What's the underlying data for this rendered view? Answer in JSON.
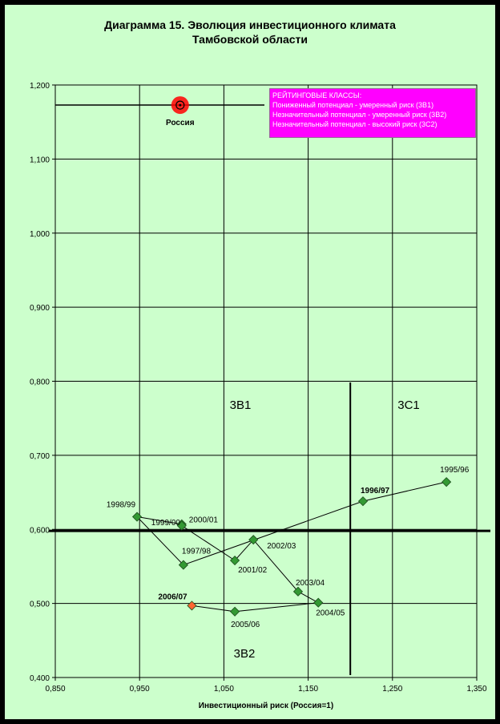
{
  "title_line1": "Диаграмма 15. Эволюция инвестиционного климата",
  "title_line2": "Тамбовской области",
  "legend": {
    "header": "РЕЙТИНГОВЫЕ КЛАССЫ:",
    "items": [
      "Пониженный потенциал - умеренный риск (3В1)",
      "Незначительный потенциал - умеренный риск (3В2)",
      "Незначительный потенциал - высокий риск (3С2)"
    ]
  },
  "zones": {
    "zb1": "3В1",
    "zc1": "3С1",
    "zb2": "3В2"
  },
  "colors": {
    "background": "#ccffcc",
    "frame": "#000000",
    "point": "#339933",
    "highlight": "#ff6633",
    "russia": "#ff0000",
    "legend_bg": "#ff00ff"
  },
  "chart_data": {
    "type": "scatter",
    "xlabel": "Инвестиционный риск (Россия=1)",
    "ylabel": "",
    "xlim": [
      0.85,
      1.35
    ],
    "ylim": [
      0.4,
      1.2
    ],
    "x_ticks": [
      "0,850",
      "0,950",
      "1,050",
      "1,150",
      "1,250",
      "1,350"
    ],
    "y_ticks": [
      "0,400",
      "0,500",
      "0,600",
      "0,700",
      "0,800",
      "0,900",
      "1,000",
      "1,100",
      "1,200"
    ],
    "grid": true,
    "reference": {
      "label": "Россия",
      "x": 1.0,
      "y": 1.175
    },
    "reference_lines": {
      "russia_y": 1.173,
      "threshold_y": 0.598,
      "threshold_x": 1.2
    },
    "points": [
      {
        "label": "1995/96",
        "x": 1.314,
        "y": 0.664,
        "bold": false
      },
      {
        "label": "1996/97",
        "x": 1.215,
        "y": 0.638,
        "bold": true
      },
      {
        "label": "1997/98",
        "x": 1.002,
        "y": 0.552,
        "bold": false
      },
      {
        "label": "1998/99",
        "x": 0.947,
        "y": 0.617,
        "bold": false
      },
      {
        "label": "1999/00",
        "x": 1.0,
        "y": 0.607,
        "bold": false
      },
      {
        "label": "2000/01",
        "x": 1.0,
        "y": 0.605,
        "bold": false
      },
      {
        "label": "2001/02",
        "x": 1.063,
        "y": 0.558,
        "bold": false
      },
      {
        "label": "2002/03",
        "x": 1.085,
        "y": 0.586,
        "bold": false
      },
      {
        "label": "2003/04",
        "x": 1.138,
        "y": 0.516,
        "bold": false
      },
      {
        "label": "2004/05",
        "x": 1.162,
        "y": 0.501,
        "bold": false
      },
      {
        "label": "2005/06",
        "x": 1.063,
        "y": 0.489,
        "bold": false
      },
      {
        "label": "2006/07",
        "x": 1.012,
        "y": 0.497,
        "bold": true,
        "highlight": true
      }
    ]
  }
}
